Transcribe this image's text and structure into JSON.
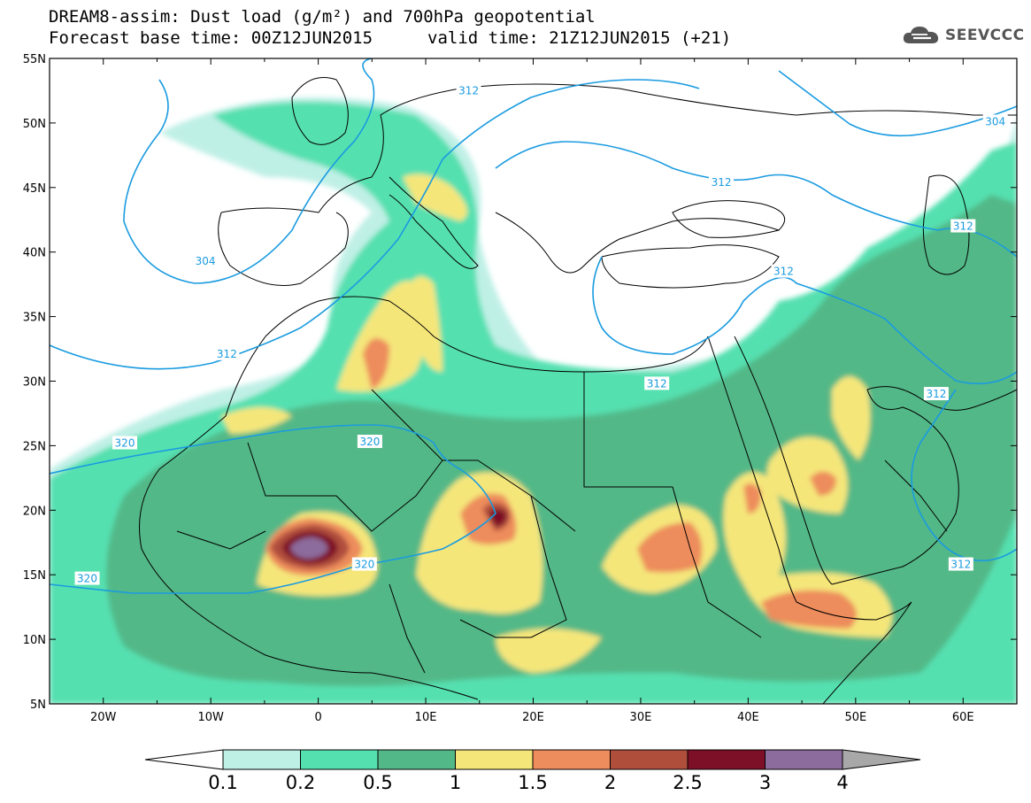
{
  "title_line1": "DREAM8-assim: Dust load (g/m²) and 700hPa geopotential",
  "title_forecast": "Forecast base time: 00Z12JUN2015",
  "title_valid": "valid time: 21Z12JUN2015 (+21)",
  "logo_text": "SEEVCCC",
  "lat_labels": [
    "55N",
    "50N",
    "45N",
    "40N",
    "35N",
    "30N",
    "25N",
    "20N",
    "15N",
    "10N",
    "5N"
  ],
  "lon_labels": [
    "20W",
    "10W",
    "0",
    "10E",
    "20E",
    "30E",
    "40E",
    "50E",
    "60E"
  ],
  "contour_labels": [
    {
      "text": "312",
      "lon": 14,
      "lat": 52.5
    },
    {
      "text": "304",
      "lon": 63,
      "lat": 50.1
    },
    {
      "text": "312",
      "lon": 37.5,
      "lat": 45.4
    },
    {
      "text": "312",
      "lon": 60,
      "lat": 42
    },
    {
      "text": "304",
      "lon": -10.5,
      "lat": 39.3
    },
    {
      "text": "312",
      "lon": 43.3,
      "lat": 38.5
    },
    {
      "text": "312",
      "lon": -8.5,
      "lat": 32.1
    },
    {
      "text": "312",
      "lon": 31.5,
      "lat": 29.8
    },
    {
      "text": "312",
      "lon": 57.5,
      "lat": 29
    },
    {
      "text": "320",
      "lon": -18,
      "lat": 25.2
    },
    {
      "text": "320",
      "lon": 4.8,
      "lat": 25.3
    },
    {
      "text": "320",
      "lon": 4.3,
      "lat": 15.8
    },
    {
      "text": "320",
      "lon": -21.5,
      "lat": 14.7
    },
    {
      "text": "312",
      "lon": 59.8,
      "lat": 15.8
    }
  ],
  "colorbar": {
    "labels": [
      "0.1",
      "0.2",
      "0.5",
      "1",
      "1.5",
      "2",
      "2.5",
      "3",
      "4"
    ],
    "colors": [
      "#ffffff",
      "#bff0e6",
      "#55e0b0",
      "#53b887",
      "#f5e67a",
      "#ed8c5c",
      "#b04e3c",
      "#7d1027",
      "#8c6c9c",
      "#a8a8a8"
    ]
  },
  "colors": {
    "land_border": "#000000",
    "contour": "#1a9be0",
    "l1": "#bff0e6",
    "l2": "#55e0b0",
    "l3": "#53b887",
    "l4": "#f5e67a",
    "l5": "#ed8c5c",
    "l6": "#b04e3c",
    "l7": "#7d1027",
    "l8": "#8c6c9c"
  },
  "map_extent": {
    "lon": [
      -25,
      65
    ],
    "lat": [
      5,
      55
    ]
  }
}
